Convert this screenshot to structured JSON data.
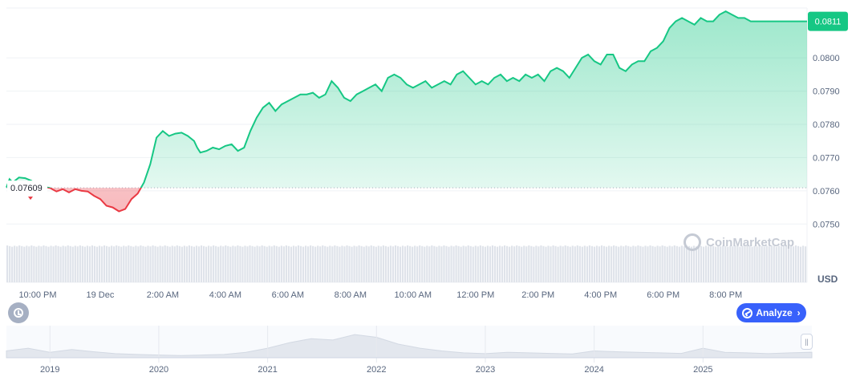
{
  "chart_data": {
    "type": "area",
    "currency_label": "USD",
    "open_price_label": "0.07609",
    "current_price_label": "0.0811",
    "ylim": [
      0.0745,
      0.0815
    ],
    "yticks": [
      "0.0750",
      "0.0760",
      "0.0770",
      "0.0780",
      "0.0790",
      "0.0800"
    ],
    "ytick_values": [
      0.075,
      0.076,
      0.077,
      0.078,
      0.079,
      0.08
    ],
    "xticks": [
      "10:00 PM",
      "19 Dec",
      "2:00 AM",
      "4:00 AM",
      "6:00 AM",
      "8:00 AM",
      "10:00 AM",
      "12:00 PM",
      "2:00 PM",
      "4:00 PM",
      "6:00 PM",
      "8:00 PM"
    ],
    "xtick_hours": [
      22,
      24,
      26,
      28,
      30,
      32,
      34,
      36,
      38,
      40,
      42,
      44
    ],
    "baseline": 0.07609,
    "colors": {
      "up": "#16c784",
      "down": "#ea3943",
      "accent": "#3861fb"
    },
    "series": [
      {
        "x": [
          21.0,
          21.1,
          21.2,
          21.4,
          21.6,
          21.8,
          22.0,
          22.2,
          22.4,
          22.6,
          22.8,
          23.0,
          23.2,
          23.4,
          23.6,
          23.8,
          24.0,
          24.2,
          24.4,
          24.6,
          24.8,
          25.0,
          25.2,
          25.4,
          25.6,
          25.8,
          26.0,
          26.2,
          26.4,
          26.6,
          26.8,
          27.0,
          27.1,
          27.2,
          27.4,
          27.6,
          27.8,
          28.0,
          28.2,
          28.4,
          28.6,
          28.8,
          29.0,
          29.2,
          29.4,
          29.6,
          29.8,
          30.0,
          30.2,
          30.4,
          30.6,
          30.8,
          31.0,
          31.2,
          31.4,
          31.6,
          31.8,
          32.0,
          32.2,
          32.4,
          32.6,
          32.8,
          33.0,
          33.2,
          33.4,
          33.6,
          33.8,
          34.0,
          34.2,
          34.4,
          34.6,
          34.8,
          35.0,
          35.2,
          35.4,
          35.6,
          35.8,
          36.0,
          36.2,
          36.4,
          36.6,
          36.8,
          37.0,
          37.2,
          37.4,
          37.6,
          37.8,
          38.0,
          38.2,
          38.4,
          38.6,
          38.8,
          39.0,
          39.2,
          39.4,
          39.6,
          39.8,
          40.0,
          40.2,
          40.4,
          40.6,
          40.8,
          41.0,
          41.2,
          41.4,
          41.6,
          41.8,
          42.0,
          42.2,
          42.4,
          42.6,
          42.8,
          43.0,
          43.2,
          43.4,
          43.6,
          43.8,
          44.0,
          44.2,
          44.4,
          44.6,
          44.8,
          45.0,
          45.2,
          45.4,
          45.6,
          45.8,
          46.0,
          46.2,
          46.4,
          46.6
        ],
        "values": [
          0.0761,
          0.07635,
          0.07625,
          0.0764,
          0.07638,
          0.0763,
          0.0761,
          0.07612,
          0.07608,
          0.07598,
          0.07605,
          0.07595,
          0.07605,
          0.076,
          0.07598,
          0.07585,
          0.07575,
          0.07555,
          0.0755,
          0.07538,
          0.07545,
          0.07575,
          0.07592,
          0.07625,
          0.0768,
          0.0776,
          0.0778,
          0.07765,
          0.07772,
          0.07775,
          0.07765,
          0.0775,
          0.0773,
          0.07715,
          0.0772,
          0.0773,
          0.07725,
          0.07735,
          0.0774,
          0.0772,
          0.0773,
          0.0778,
          0.0782,
          0.0785,
          0.07865,
          0.0784,
          0.0786,
          0.0787,
          0.0788,
          0.0789,
          0.0789,
          0.07895,
          0.0788,
          0.0789,
          0.0793,
          0.0791,
          0.0788,
          0.0787,
          0.0789,
          0.079,
          0.0791,
          0.0792,
          0.079,
          0.0794,
          0.0795,
          0.0794,
          0.0792,
          0.0791,
          0.0792,
          0.0793,
          0.0791,
          0.0792,
          0.0793,
          0.0792,
          0.0795,
          0.0796,
          0.0794,
          0.0792,
          0.0793,
          0.0792,
          0.0794,
          0.0795,
          0.0793,
          0.0794,
          0.0793,
          0.0795,
          0.0794,
          0.0795,
          0.0793,
          0.0796,
          0.0797,
          0.0796,
          0.0794,
          0.0797,
          0.08,
          0.0801,
          0.0799,
          0.0798,
          0.0801,
          0.0801,
          0.0797,
          0.0796,
          0.0798,
          0.0799,
          0.0799,
          0.0802,
          0.0803,
          0.0805,
          0.0809,
          0.0811,
          0.0812,
          0.0811,
          0.081,
          0.0812,
          0.0811,
          0.0811,
          0.0813,
          0.0814,
          0.0813,
          0.0812,
          0.0812,
          0.0811,
          0.0811,
          0.0811,
          0.0811,
          0.0811,
          0.0811,
          0.0811,
          0.0811,
          0.0811,
          0.0811
        ]
      }
    ],
    "overview": {
      "xticks": [
        "2019",
        "2020",
        "2021",
        "2022",
        "2023",
        "2024",
        "2025"
      ],
      "xtick_years": [
        2019,
        2020,
        2021,
        2022,
        2023,
        2024,
        2025
      ],
      "xlim": [
        2018.6,
        2026.0
      ],
      "x": [
        2018.6,
        2018.8,
        2019.0,
        2019.2,
        2019.4,
        2019.6,
        2019.8,
        2020.0,
        2020.2,
        2020.4,
        2020.6,
        2020.8,
        2021.0,
        2021.2,
        2021.4,
        2021.6,
        2021.8,
        2022.0,
        2022.2,
        2022.4,
        2022.6,
        2022.8,
        2023.0,
        2023.2,
        2023.4,
        2023.6,
        2023.8,
        2024.0,
        2024.2,
        2024.4,
        2024.6,
        2024.8,
        2025.0,
        2025.2,
        2025.4,
        2025.6,
        2025.8,
        2026.0
      ],
      "values": [
        0.25,
        0.35,
        0.2,
        0.3,
        0.22,
        0.15,
        0.12,
        0.1,
        0.08,
        0.1,
        0.12,
        0.2,
        0.35,
        0.55,
        0.7,
        0.65,
        0.85,
        0.75,
        0.5,
        0.35,
        0.25,
        0.18,
        0.15,
        0.2,
        0.18,
        0.16,
        0.14,
        0.25,
        0.22,
        0.2,
        0.18,
        0.16,
        0.35,
        0.2,
        0.18,
        0.15,
        0.18,
        0.2
      ]
    }
  },
  "watermark": "CoinMarketCap",
  "analyze_label": "Analyze",
  "history_icon": "history-icon",
  "range_handle_glyph": "||"
}
